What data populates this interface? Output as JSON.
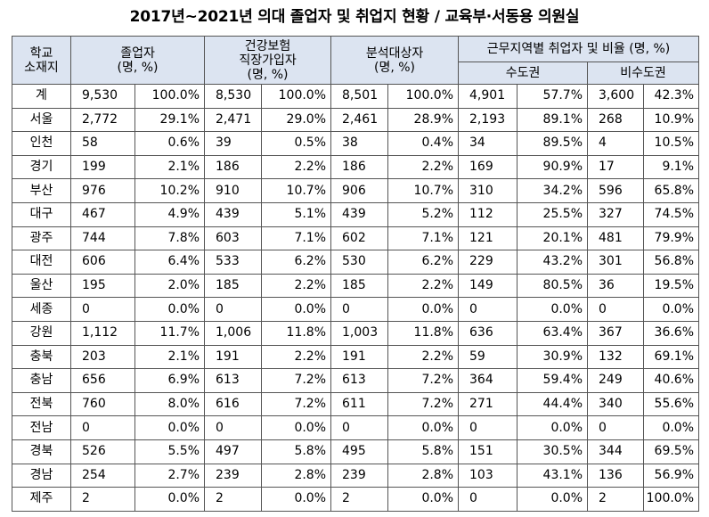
{
  "title": "2017년~2021년 의대 졸업자 및 취업지 현황 / 교육부·서동용 의원실",
  "headers": {
    "location": "학교\n소재지",
    "graduates": "졸업자\n(명, %)",
    "insured": "건강보험\n직장가입자\n(명, %)",
    "analyzed": "분석대상자\n(명, %)",
    "region_group": "근무지역별 취업자 및 비율 (명, %)",
    "capital": "수도권",
    "non_capital": "비수도권"
  },
  "rows": [
    {
      "loc": "계",
      "g": "9,530",
      "gp": "100.0%",
      "i": "8,530",
      "ip": "100.0%",
      "a": "8,501",
      "ap": "100.0%",
      "c": "4,901",
      "cp": "57.7%",
      "n": "3,600",
      "np": "42.3%"
    },
    {
      "loc": "서울",
      "g": "2,772",
      "gp": "29.1%",
      "i": "2,471",
      "ip": "29.0%",
      "a": "2,461",
      "ap": "28.9%",
      "c": "2,193",
      "cp": "89.1%",
      "n": "268",
      "np": "10.9%"
    },
    {
      "loc": "인천",
      "g": "58",
      "gp": "0.6%",
      "i": "39",
      "ip": "0.5%",
      "a": "38",
      "ap": "0.4%",
      "c": "34",
      "cp": "89.5%",
      "n": "4",
      "np": "10.5%"
    },
    {
      "loc": "경기",
      "g": "199",
      "gp": "2.1%",
      "i": "186",
      "ip": "2.2%",
      "a": "186",
      "ap": "2.2%",
      "c": "169",
      "cp": "90.9%",
      "n": "17",
      "np": "9.1%"
    },
    {
      "loc": "부산",
      "g": "976",
      "gp": "10.2%",
      "i": "910",
      "ip": "10.7%",
      "a": "906",
      "ap": "10.7%",
      "c": "310",
      "cp": "34.2%",
      "n": "596",
      "np": "65.8%"
    },
    {
      "loc": "대구",
      "g": "467",
      "gp": "4.9%",
      "i": "439",
      "ip": "5.1%",
      "a": "439",
      "ap": "5.2%",
      "c": "112",
      "cp": "25.5%",
      "n": "327",
      "np": "74.5%"
    },
    {
      "loc": "광주",
      "g": "744",
      "gp": "7.8%",
      "i": "603",
      "ip": "7.1%",
      "a": "602",
      "ap": "7.1%",
      "c": "121",
      "cp": "20.1%",
      "n": "481",
      "np": "79.9%"
    },
    {
      "loc": "대전",
      "g": "606",
      "gp": "6.4%",
      "i": "533",
      "ip": "6.2%",
      "a": "530",
      "ap": "6.2%",
      "c": "229",
      "cp": "43.2%",
      "n": "301",
      "np": "56.8%"
    },
    {
      "loc": "울산",
      "g": "195",
      "gp": "2.0%",
      "i": "185",
      "ip": "2.2%",
      "a": "185",
      "ap": "2.2%",
      "c": "149",
      "cp": "80.5%",
      "n": "36",
      "np": "19.5%"
    },
    {
      "loc": "세종",
      "g": "0",
      "gp": "0.0%",
      "i": "0",
      "ip": "0.0%",
      "a": "0",
      "ap": "0.0%",
      "c": "0",
      "cp": "0.0%",
      "n": "0",
      "np": "0.0%"
    },
    {
      "loc": "강원",
      "g": "1,112",
      "gp": "11.7%",
      "i": "1,006",
      "ip": "11.8%",
      "a": "1,003",
      "ap": "11.8%",
      "c": "636",
      "cp": "63.4%",
      "n": "367",
      "np": "36.6%"
    },
    {
      "loc": "충북",
      "g": "203",
      "gp": "2.1%",
      "i": "191",
      "ip": "2.2%",
      "a": "191",
      "ap": "2.2%",
      "c": "59",
      "cp": "30.9%",
      "n": "132",
      "np": "69.1%"
    },
    {
      "loc": "충남",
      "g": "656",
      "gp": "6.9%",
      "i": "613",
      "ip": "7.2%",
      "a": "613",
      "ap": "7.2%",
      "c": "364",
      "cp": "59.4%",
      "n": "249",
      "np": "40.6%"
    },
    {
      "loc": "전북",
      "g": "760",
      "gp": "8.0%",
      "i": "616",
      "ip": "7.2%",
      "a": "611",
      "ap": "7.2%",
      "c": "271",
      "cp": "44.4%",
      "n": "340",
      "np": "55.6%"
    },
    {
      "loc": "전남",
      "g": "0",
      "gp": "0.0%",
      "i": "0",
      "ip": "0.0%",
      "a": "0",
      "ap": "0.0%",
      "c": "0",
      "cp": "0.0%",
      "n": "0",
      "np": "0.0%"
    },
    {
      "loc": "경북",
      "g": "526",
      "gp": "5.5%",
      "i": "497",
      "ip": "5.8%",
      "a": "495",
      "ap": "5.8%",
      "c": "151",
      "cp": "30.5%",
      "n": "344",
      "np": "69.5%"
    },
    {
      "loc": "경남",
      "g": "254",
      "gp": "2.7%",
      "i": "239",
      "ip": "2.8%",
      "a": "239",
      "ap": "2.8%",
      "c": "103",
      "cp": "43.1%",
      "n": "136",
      "np": "56.9%"
    },
    {
      "loc": "제주",
      "g": "2",
      "gp": "0.0%",
      "i": "2",
      "ip": "0.0%",
      "a": "2",
      "ap": "0.0%",
      "c": "0",
      "cp": "0.0%",
      "n": "2",
      "np": "100.0%"
    }
  ]
}
